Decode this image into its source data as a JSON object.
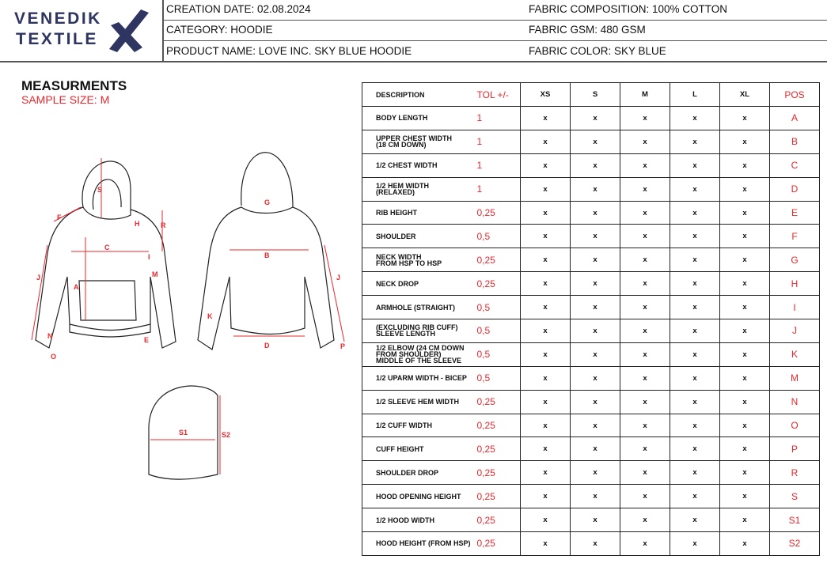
{
  "logo": {
    "line1": "VENEDIK",
    "line2": "TEXTILE"
  },
  "header": {
    "creation_date": "CREATION DATE: 02.08.2024",
    "category": "CATEGORY: HOODIE",
    "product_name": "PRODUCT NAME: LOVE INC. SKY BLUE HOODIE",
    "fabric_composition": "FABRIC COMPOSITION: 100% COTTON",
    "fabric_gsm": "FABRIC GSM: 480 GSM",
    "fabric_color": "FABRIC COLOR: SKY BLUE"
  },
  "section": {
    "title": "MEASURMENTS",
    "sample_size": "SAMPLE SIZE: M"
  },
  "colors": {
    "accent": "#e8282e",
    "brand": "#2e3560"
  },
  "sketch_labels": [
    "S",
    "F",
    "H",
    "R",
    "C",
    "I",
    "M",
    "J",
    "A",
    "N",
    "E",
    "O",
    "G",
    "B",
    "J",
    "K",
    "D",
    "P",
    "S1",
    "S2"
  ],
  "table": {
    "headers": [
      "DESCRIPTION",
      "TOL +/-",
      "XS",
      "S",
      "M",
      "L",
      "XL",
      "POS"
    ],
    "rows": [
      {
        "desc": "BODY LENGTH",
        "tol": "1",
        "vals": [
          "x",
          "x",
          "x",
          "x",
          "x"
        ],
        "pos": "A"
      },
      {
        "desc": "UPPER CHEST WIDTH\n(18 CM DOWN)",
        "tol": "1",
        "vals": [
          "x",
          "x",
          "x",
          "x",
          "x"
        ],
        "pos": "B"
      },
      {
        "desc": "1/2 CHEST WIDTH",
        "tol": "1",
        "vals": [
          "x",
          "x",
          "x",
          "x",
          "x"
        ],
        "pos": "C"
      },
      {
        "desc": "1/2 HEM WIDTH\n(RELAXED)",
        "tol": "1",
        "vals": [
          "x",
          "x",
          "x",
          "x",
          "x"
        ],
        "pos": "D"
      },
      {
        "desc": "RIB HEIGHT",
        "tol": "0,25",
        "vals": [
          "x",
          "x",
          "x",
          "x",
          "x"
        ],
        "pos": "E"
      },
      {
        "desc": "SHOULDER",
        "tol": "0,5",
        "vals": [
          "x",
          "x",
          "x",
          "x",
          "x"
        ],
        "pos": "F"
      },
      {
        "desc": "NECK WIDTH\nFROM HSP TO HSP",
        "tol": "0,25",
        "vals": [
          "x",
          "x",
          "x",
          "x",
          "x"
        ],
        "pos": "G"
      },
      {
        "desc": "NECK DROP",
        "tol": "0,25",
        "vals": [
          "x",
          "x",
          "x",
          "x",
          "x"
        ],
        "pos": "H"
      },
      {
        "desc": "ARMHOLE (STRAIGHT)",
        "tol": "0,5",
        "vals": [
          "x",
          "x",
          "x",
          "x",
          "x"
        ],
        "pos": "I"
      },
      {
        "desc": "(EXCLUDING RIB CUFF)\nSLEEVE LENGTH",
        "tol": "0,5",
        "vals": [
          "x",
          "x",
          "x",
          "x",
          "x"
        ],
        "pos": "J"
      },
      {
        "desc": "1/2 ELBOW (24 CM DOWN\nFROM SHOULDER)\nMIDDLE OF THE SLEEVE",
        "tol": "0,5",
        "vals": [
          "x",
          "x",
          "x",
          "x",
          "x"
        ],
        "pos": "K"
      },
      {
        "desc": "1/2 UPARM WIDTH - BICEP",
        "tol": "0,5",
        "vals": [
          "x",
          "x",
          "x",
          "x",
          "x"
        ],
        "pos": "M"
      },
      {
        "desc": "1/2 SLEEVE HEM WIDTH",
        "tol": "0,25",
        "vals": [
          "x",
          "x",
          "x",
          "x",
          "x"
        ],
        "pos": "N"
      },
      {
        "desc": "1/2 CUFF WIDTH",
        "tol": "0,25",
        "vals": [
          "x",
          "x",
          "x",
          "x",
          "x"
        ],
        "pos": "O"
      },
      {
        "desc": "CUFF HEIGHT",
        "tol": "0,25",
        "vals": [
          "x",
          "x",
          "x",
          "x",
          "x"
        ],
        "pos": "P"
      },
      {
        "desc": "SHOULDER DROP",
        "tol": "0,25",
        "vals": [
          "x",
          "x",
          "x",
          "x",
          "x"
        ],
        "pos": "R"
      },
      {
        "desc": "HOOD OPENING HEIGHT",
        "tol": "0,25",
        "vals": [
          "x",
          "x",
          "x",
          "x",
          "x"
        ],
        "pos": "S"
      },
      {
        "desc": "1/2 HOOD WIDTH",
        "tol": "0,25",
        "vals": [
          "x",
          "x",
          "x",
          "x",
          "x"
        ],
        "pos": "S1"
      },
      {
        "desc": "HOOD HEIGHT (FROM HSP)",
        "tol": "0,25",
        "vals": [
          "x",
          "x",
          "x",
          "x",
          "x"
        ],
        "pos": "S2"
      }
    ]
  }
}
